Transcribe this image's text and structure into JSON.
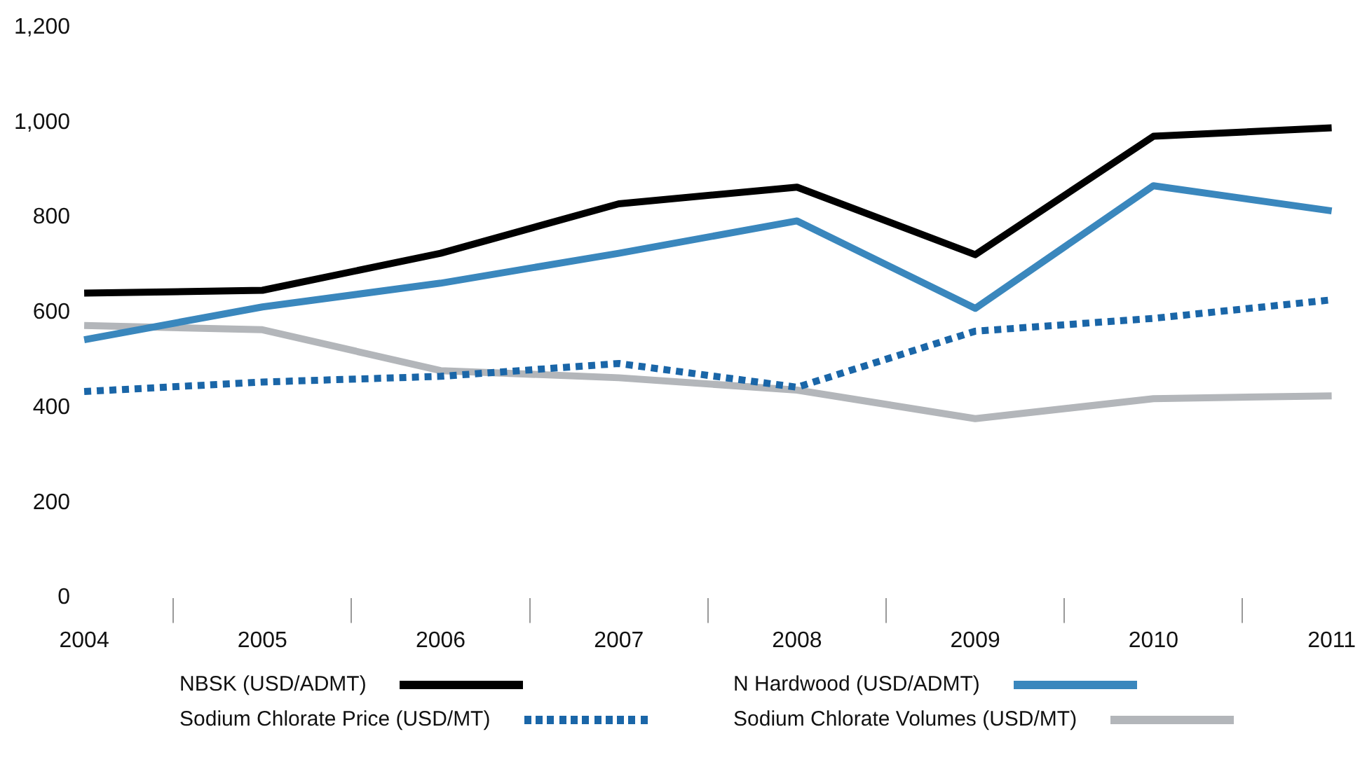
{
  "chart_data": {
    "type": "line",
    "categories": [
      "2004",
      "2005",
      "2006",
      "2007",
      "2008",
      "2009",
      "2010",
      "2011"
    ],
    "series": [
      {
        "name": "NBSK (USD/ADMT)",
        "color": "#000000",
        "line_style": "solid",
        "values": [
          641,
          647,
          725,
          829,
          864,
          722,
          971,
          989
        ]
      },
      {
        "name": "N Hardwood (USD/ADMT)",
        "color": "#3a87bd",
        "line_style": "solid",
        "values": [
          543,
          612,
          662,
          725,
          793,
          609,
          867,
          814
        ]
      },
      {
        "name": "Sodium Chlorate Price (USD/MT)",
        "color": "#1a66a8",
        "line_style": "dotted",
        "values": [
          434,
          454,
          466,
          493,
          443,
          561,
          588,
          627
        ]
      },
      {
        "name": "Sodium Chlorate Volumes (USD/MT)",
        "color": "#b3b6ba",
        "line_style": "solid",
        "values": [
          573,
          564,
          478,
          463,
          437,
          377,
          419,
          425
        ]
      }
    ],
    "ylim": [
      0,
      1200
    ],
    "yticks": [
      0,
      200,
      400,
      600,
      800,
      {
        "value": 1000,
        "label": "1,000"
      },
      {
        "value": 1200,
        "label": "1,200"
      }
    ],
    "grid": false,
    "legend": "bottom",
    "marker": "none"
  }
}
